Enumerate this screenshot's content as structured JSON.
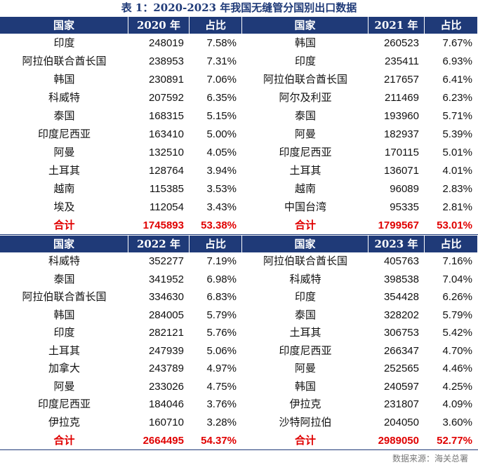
{
  "title": "表 1：2020-2023 年我国无缝管分国别出口数据",
  "tables": [
    {
      "headers": [
        "国家",
        "2020 年",
        "占比"
      ],
      "rows": [
        [
          "印度",
          "248019",
          "7.58%"
        ],
        [
          "阿拉伯联合酋长国",
          "238953",
          "7.31%"
        ],
        [
          "韩国",
          "230891",
          "7.06%"
        ],
        [
          "科威特",
          "207592",
          "6.35%"
        ],
        [
          "泰国",
          "168315",
          "5.15%"
        ],
        [
          "印度尼西亚",
          "163410",
          "5.00%"
        ],
        [
          "阿曼",
          "132510",
          "4.05%"
        ],
        [
          "土耳其",
          "128764",
          "3.94%"
        ],
        [
          "越南",
          "115385",
          "3.53%"
        ],
        [
          "埃及",
          "112054",
          "3.43%"
        ]
      ],
      "total": [
        "合计",
        "1745893",
        "53.38%"
      ]
    },
    {
      "headers": [
        "国家",
        "2021 年",
        "占比"
      ],
      "rows": [
        [
          "韩国",
          "260523",
          "7.67%"
        ],
        [
          "印度",
          "235411",
          "6.93%"
        ],
        [
          "阿拉伯联合酋长国",
          "217657",
          "6.41%"
        ],
        [
          "阿尔及利亚",
          "211469",
          "6.23%"
        ],
        [
          "泰国",
          "193960",
          "5.71%"
        ],
        [
          "阿曼",
          "182937",
          "5.39%"
        ],
        [
          "印度尼西亚",
          "170115",
          "5.01%"
        ],
        [
          "土耳其",
          "136071",
          "4.01%"
        ],
        [
          "越南",
          "96089",
          "2.83%"
        ],
        [
          "中国台湾",
          "95335",
          "2.81%"
        ]
      ],
      "total": [
        "合计",
        "1799567",
        "53.01%"
      ]
    },
    {
      "headers": [
        "国家",
        "2022 年",
        "占比"
      ],
      "rows": [
        [
          "科威特",
          "352277",
          "7.19%"
        ],
        [
          "泰国",
          "341952",
          "6.98%"
        ],
        [
          "阿拉伯联合酋长国",
          "334630",
          "6.83%"
        ],
        [
          "韩国",
          "284005",
          "5.79%"
        ],
        [
          "印度",
          "282121",
          "5.76%"
        ],
        [
          "土耳其",
          "247939",
          "5.06%"
        ],
        [
          "加拿大",
          "243789",
          "4.97%"
        ],
        [
          "阿曼",
          "233026",
          "4.75%"
        ],
        [
          "印度尼西亚",
          "184046",
          "3.76%"
        ],
        [
          "伊拉克",
          "160710",
          "3.28%"
        ]
      ],
      "total": [
        "合计",
        "2664495",
        "54.37%"
      ]
    },
    {
      "headers": [
        "国家",
        "2023 年",
        "占比"
      ],
      "rows": [
        [
          "阿拉伯联合酋长国",
          "405763",
          "7.16%"
        ],
        [
          "科威特",
          "398538",
          "7.04%"
        ],
        [
          "印度",
          "354428",
          "6.26%"
        ],
        [
          "泰国",
          "328202",
          "5.79%"
        ],
        [
          "土耳其",
          "306753",
          "5.42%"
        ],
        [
          "印度尼西亚",
          "266347",
          "4.70%"
        ],
        [
          "阿曼",
          "252565",
          "4.46%"
        ],
        [
          "韩国",
          "240597",
          "4.25%"
        ],
        [
          "伊拉克",
          "231807",
          "4.09%"
        ],
        [
          "沙特阿拉伯",
          "204050",
          "3.60%"
        ]
      ],
      "total": [
        "合计",
        "2989050",
        "52.77%"
      ]
    }
  ],
  "source": "数据来源：海关总署"
}
